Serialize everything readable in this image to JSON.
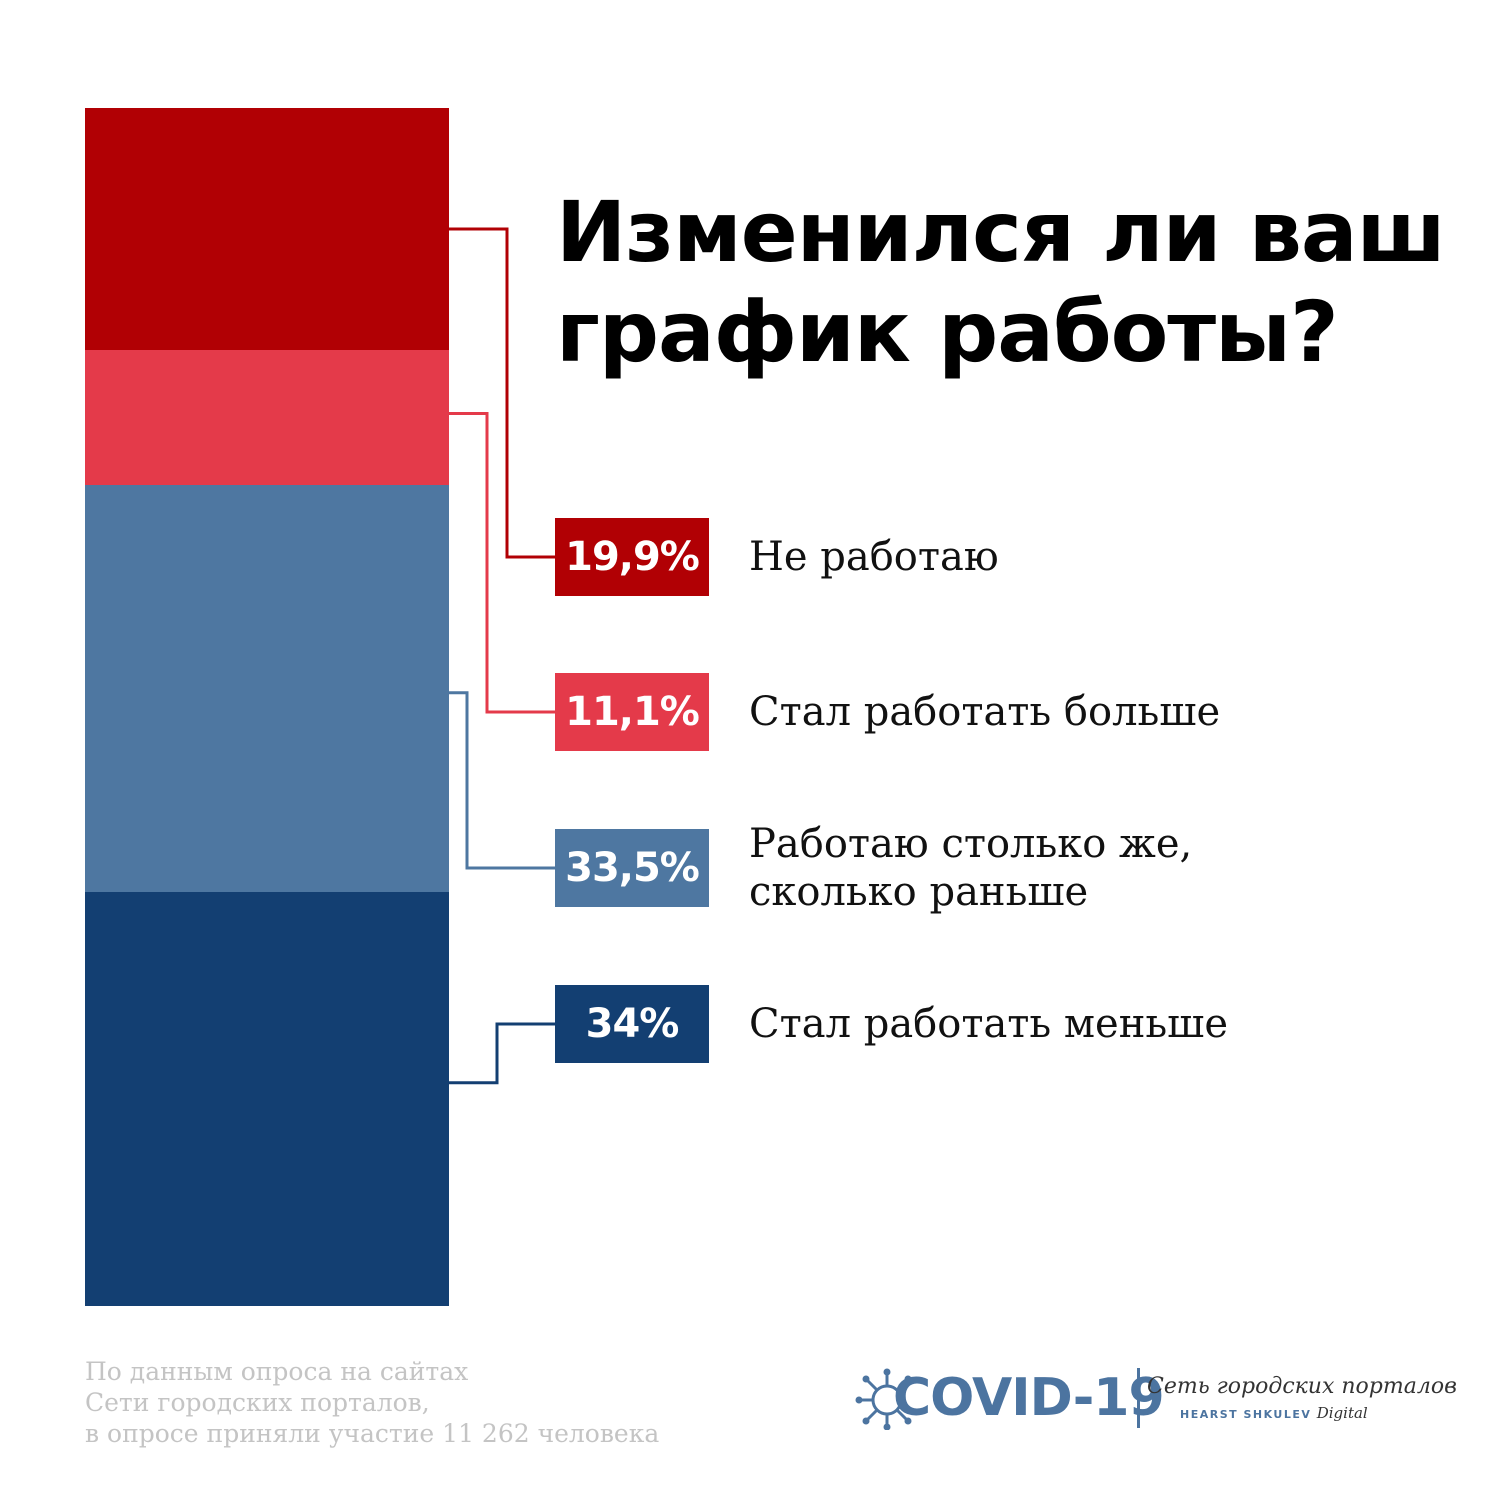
{
  "title_lines": [
    "Изменился ли ваш",
    "график работы?"
  ],
  "chart_data": {
    "type": "bar",
    "stacked": true,
    "title": "Изменился ли ваш график работы?",
    "categories": [
      "Не работаю",
      "Стал работать больше",
      "Работаю столько же, сколько раньше",
      "Стал работать меньше"
    ],
    "values": [
      19.9,
      11.1,
      33.5,
      34
    ],
    "value_labels": [
      "19,9%",
      "11,1%",
      "33,5%",
      "34%"
    ],
    "colors": [
      "#b10004",
      "#e43a4a",
      "#4e77a1",
      "#133f72"
    ],
    "unit": "%"
  },
  "items": [
    {
      "value_label": "19,9%",
      "label_lines": [
        "Не работаю"
      ]
    },
    {
      "value_label": "11,1%",
      "label_lines": [
        "Стал работать больше"
      ]
    },
    {
      "value_label": "33,5%",
      "label_lines": [
        "Работаю столько же,",
        "сколько раньше"
      ]
    },
    {
      "value_label": "34%",
      "label_lines": [
        "Стал работать меньше"
      ]
    }
  ],
  "source_lines": [
    "По данным опроса на сайтах",
    "Сети городских порталов,",
    "в опросе приняли участие 11 262 человека"
  ],
  "logo": {
    "icon": "virus-icon",
    "title": "COVID-19",
    "portal": "Сеть городских порталов",
    "brand": "HEARST SHKULEV",
    "brand_suffix": "Digital",
    "color": "#4c74a0"
  }
}
